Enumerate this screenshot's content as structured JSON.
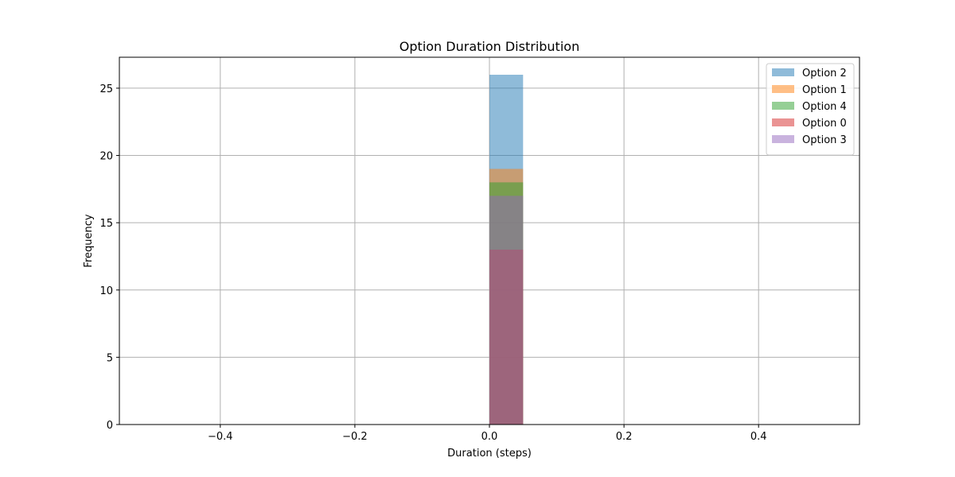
{
  "chart_data": {
    "type": "bar",
    "title": "Option Duration Distribution",
    "xlabel": "Duration (steps)",
    "ylabel": "Frequency",
    "xlim": [
      -0.55,
      0.55
    ],
    "ylim": [
      0,
      27.3
    ],
    "xticks": [
      -0.4,
      -0.2,
      0.0,
      0.2,
      0.4
    ],
    "xtick_labels": [
      "−0.4",
      "−0.2",
      "0.0",
      "0.2",
      "0.4"
    ],
    "yticks": [
      0,
      5,
      10,
      15,
      20,
      25
    ],
    "ytick_labels": [
      "0",
      "5",
      "10",
      "15",
      "20",
      "25"
    ],
    "grid": true,
    "legend_position": "top-right",
    "bar_alpha": 0.5,
    "series": [
      {
        "name": "Option 2",
        "color": "#1f77b4",
        "bins": [
          {
            "x0": 0.0,
            "x1": 0.05,
            "value": 26
          }
        ]
      },
      {
        "name": "Option 1",
        "color": "#ff7f0e",
        "bins": [
          {
            "x0": 0.0,
            "x1": 0.05,
            "value": 19
          }
        ]
      },
      {
        "name": "Option 4",
        "color": "#2ca02c",
        "bins": [
          {
            "x0": 0.0,
            "x1": 0.05,
            "value": 18
          }
        ]
      },
      {
        "name": "Option 0",
        "color": "#d62728",
        "bins": [
          {
            "x0": 0.0,
            "x1": 0.05,
            "value": 13
          }
        ]
      },
      {
        "name": "Option 3",
        "color": "#9467bd",
        "bins": [
          {
            "x0": 0.0,
            "x1": 0.05,
            "value": 17
          }
        ]
      }
    ]
  }
}
